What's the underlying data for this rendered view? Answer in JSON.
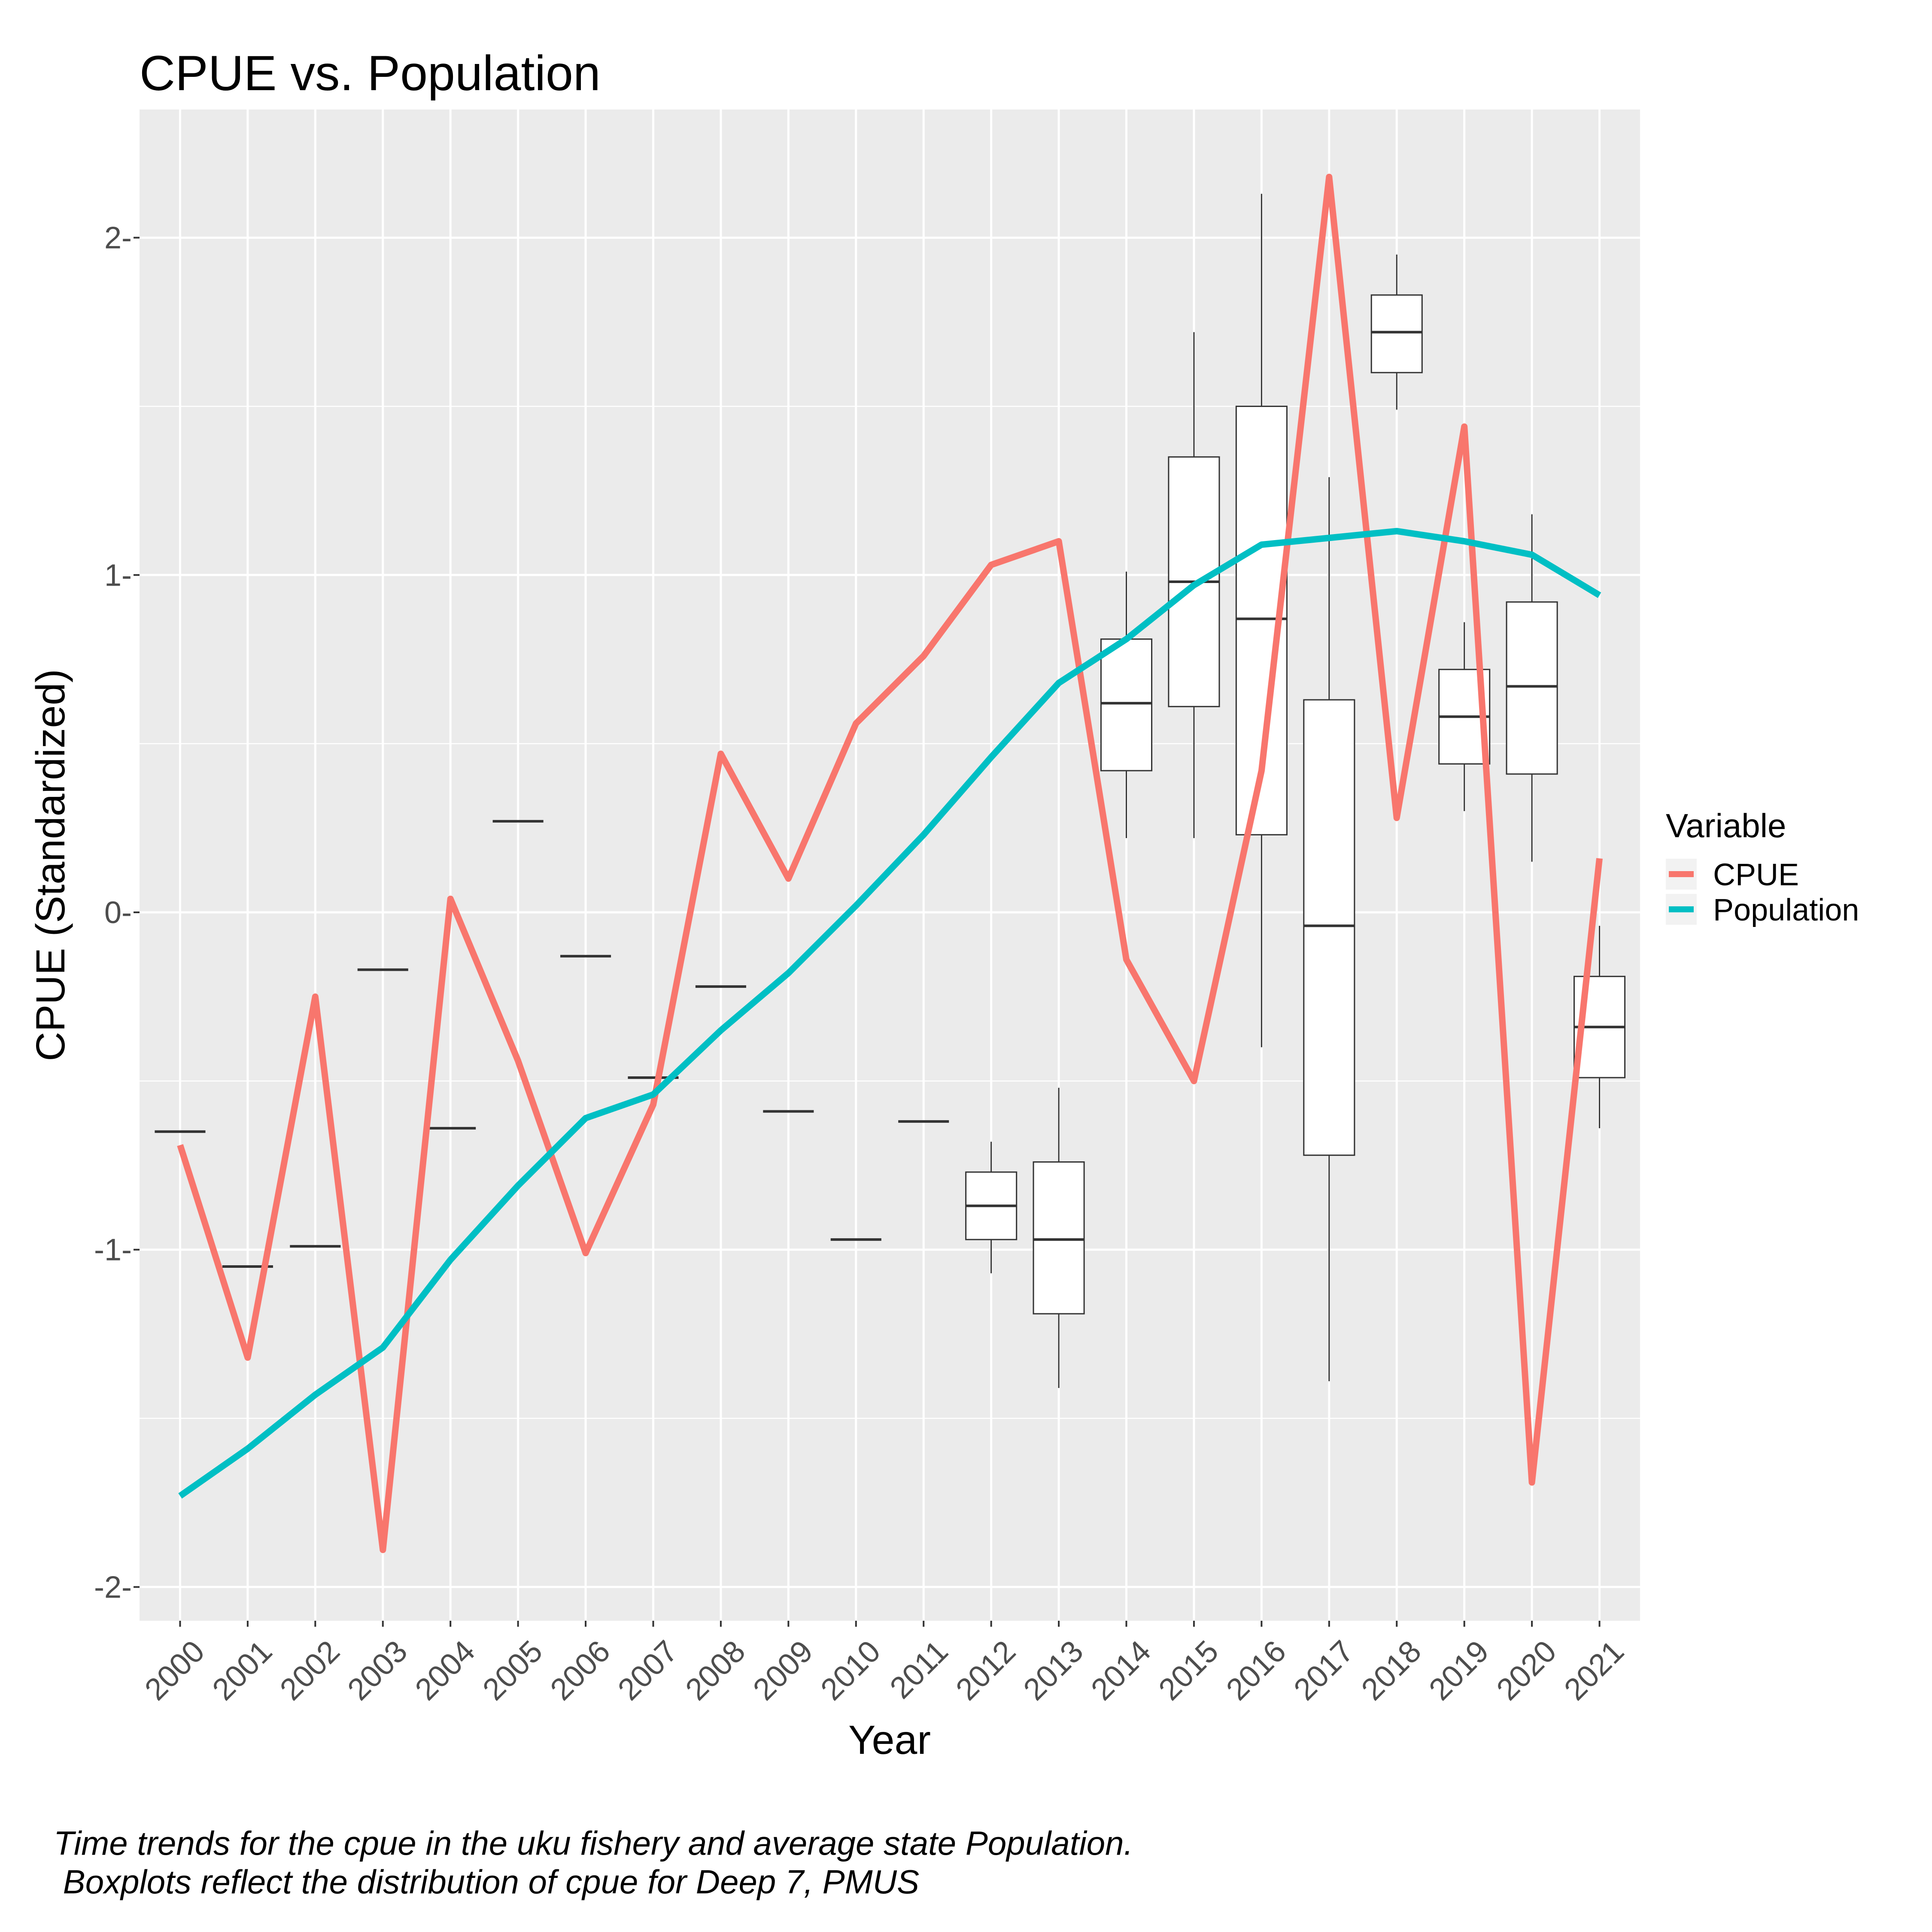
{
  "chart_data": {
    "type": "line",
    "title": "CPUE vs. Population",
    "xlabel": "Year",
    "ylabel": "CPUE (Standardized)",
    "ylim": [
      -2.1,
      2.38
    ],
    "yticks": [
      -2,
      -1,
      0,
      1,
      2
    ],
    "tick_suffix": "-",
    "categories": [
      "2000",
      "2001",
      "2002",
      "2003",
      "2004",
      "2005",
      "2006",
      "2007",
      "2008",
      "2009",
      "2010",
      "2011",
      "2012",
      "2013",
      "2014",
      "2015",
      "2016",
      "2017",
      "2018",
      "2019",
      "2020",
      "2021"
    ],
    "series": [
      {
        "name": "CPUE",
        "color": "#F8766D",
        "values": [
          -0.69,
          -1.32,
          -0.25,
          -1.89,
          0.04,
          -0.44,
          -1.01,
          -0.57,
          0.47,
          0.1,
          0.56,
          0.76,
          1.03,
          1.1,
          -0.14,
          -0.5,
          0.42,
          2.18,
          0.28,
          1.44,
          -1.69,
          0.16
        ]
      },
      {
        "name": "Population",
        "color": "#00BFC4",
        "values": [
          -1.73,
          -1.59,
          -1.43,
          -1.29,
          -1.03,
          -0.81,
          -0.61,
          -0.54,
          -0.35,
          -0.18,
          0.02,
          0.23,
          0.46,
          0.68,
          0.81,
          0.97,
          1.09,
          1.11,
          1.13,
          1.1,
          1.06,
          0.94
        ]
      }
    ],
    "boxplots": [
      {
        "x": "2000",
        "q1": -0.65,
        "median": -0.65,
        "q3": -0.65,
        "min": -0.65,
        "max": -0.65
      },
      {
        "x": "2001",
        "q1": -1.05,
        "median": -1.05,
        "q3": -1.05,
        "min": -1.05,
        "max": -1.05
      },
      {
        "x": "2002",
        "q1": -0.99,
        "median": -0.99,
        "q3": -0.99,
        "min": -0.99,
        "max": -0.99
      },
      {
        "x": "2003",
        "q1": -0.17,
        "median": -0.17,
        "q3": -0.17,
        "min": -0.17,
        "max": -0.17
      },
      {
        "x": "2004",
        "q1": -0.64,
        "median": -0.64,
        "q3": -0.64,
        "min": -0.64,
        "max": -0.64
      },
      {
        "x": "2005",
        "q1": 0.27,
        "median": 0.27,
        "q3": 0.27,
        "min": 0.27,
        "max": 0.27
      },
      {
        "x": "2006",
        "q1": -0.13,
        "median": -0.13,
        "q3": -0.13,
        "min": -0.13,
        "max": -0.13
      },
      {
        "x": "2007",
        "q1": -0.49,
        "median": -0.49,
        "q3": -0.49,
        "min": -0.49,
        "max": -0.49
      },
      {
        "x": "2008",
        "q1": -0.22,
        "median": -0.22,
        "q3": -0.22,
        "min": -0.22,
        "max": -0.22
      },
      {
        "x": "2009",
        "q1": -0.59,
        "median": -0.59,
        "q3": -0.59,
        "min": -0.59,
        "max": -0.59
      },
      {
        "x": "2010",
        "q1": -0.97,
        "median": -0.97,
        "q3": -0.97,
        "min": -0.97,
        "max": -0.97
      },
      {
        "x": "2011",
        "q1": -0.62,
        "median": -0.62,
        "q3": -0.62,
        "min": -0.62,
        "max": -0.62
      },
      {
        "x": "2012",
        "q1": -0.97,
        "median": -0.87,
        "q3": -0.77,
        "min": -1.07,
        "max": -0.68
      },
      {
        "x": "2013",
        "q1": -1.19,
        "median": -0.97,
        "q3": -0.74,
        "min": -1.41,
        "max": -0.52
      },
      {
        "x": "2014",
        "q1": 0.42,
        "median": 0.62,
        "q3": 0.81,
        "min": 0.22,
        "max": 1.01
      },
      {
        "x": "2015",
        "q1": 0.61,
        "median": 0.98,
        "q3": 1.35,
        "min": 0.22,
        "max": 1.72
      },
      {
        "x": "2016",
        "q1": 0.23,
        "median": 0.87,
        "q3": 1.5,
        "min": -0.4,
        "max": 2.13
      },
      {
        "x": "2017",
        "q1": -0.72,
        "median": -0.04,
        "q3": 0.63,
        "min": -1.39,
        "max": 1.29
      },
      {
        "x": "2018",
        "q1": 1.6,
        "median": 1.72,
        "q3": 1.83,
        "min": 1.49,
        "max": 1.95
      },
      {
        "x": "2019",
        "q1": 0.44,
        "median": 0.58,
        "q3": 0.72,
        "min": 0.3,
        "max": 0.86
      },
      {
        "x": "2020",
        "q1": 0.41,
        "median": 0.67,
        "q3": 0.92,
        "min": 0.15,
        "max": 1.18
      },
      {
        "x": "2021",
        "q1": -0.49,
        "median": -0.34,
        "q3": -0.19,
        "min": -0.64,
        "max": -0.04
      }
    ],
    "legend": {
      "title": "Variable",
      "position": "right"
    },
    "grid": true,
    "background": "#EBEBEB",
    "caption": [
      "Time trends for the cpue in the uku fishery and average state Population.",
      " Boxplots reflect the distribution of cpue for Deep 7, PMUS"
    ]
  }
}
